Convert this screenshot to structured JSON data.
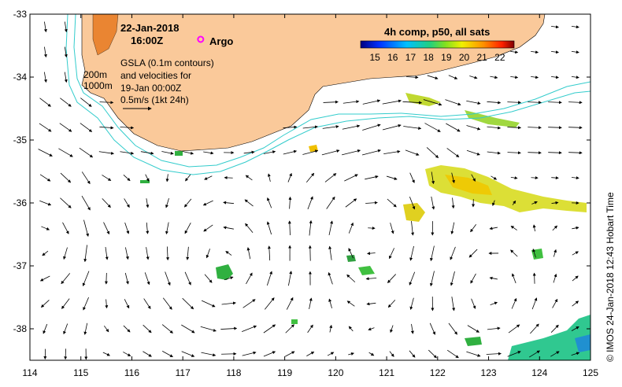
{
  "map": {
    "date": "22-Jan-2018",
    "time": "16:00Z",
    "argo_label": "Argo",
    "gsla_text": [
      "GSLA (0.1m contours)",
      "and velocities for",
      "19-Jan 00:00Z",
      "0.5m/s (1kt 24h)"
    ],
    "isobath_labels": [
      "200m",
      "1000m"
    ],
    "credit": "© IMOS 24-Jan-2018 12:43 Hobart Time",
    "colorbar": {
      "title": "4h comp, p50, all sats",
      "ticks": [
        15,
        16,
        17,
        18,
        19,
        20,
        21,
        22
      ],
      "vmin": 14.2,
      "vmax": 22.8
    },
    "lon_ticks": [
      114,
      115,
      116,
      117,
      118,
      119,
      120,
      121,
      122,
      123,
      124,
      125
    ],
    "lat_ticks": [
      -33,
      -34,
      -35,
      -36,
      -37,
      -38
    ],
    "lon_range": [
      114,
      125
    ],
    "lat_range": [
      -38.5,
      -33
    ],
    "colors": {
      "land": "#fac99a",
      "isobath": "#33cccc",
      "argo": "#ff00ff",
      "arrows": "#000000"
    },
    "argo_position": [
      117.35,
      -33.4
    ]
  }
}
